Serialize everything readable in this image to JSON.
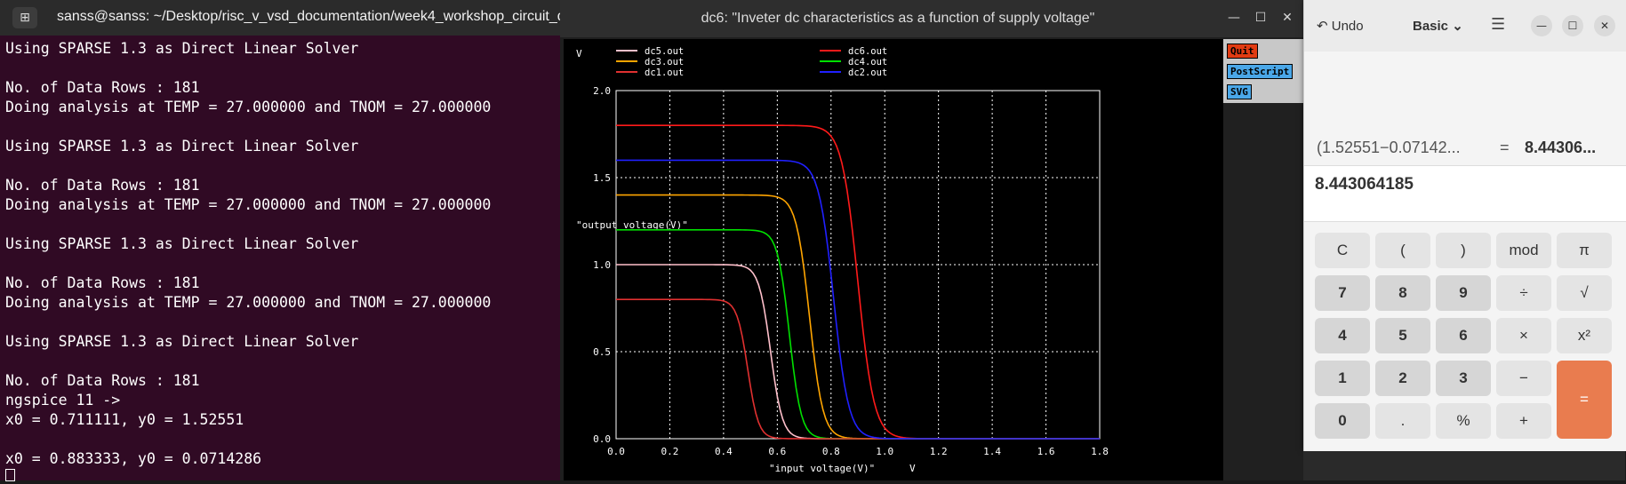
{
  "terminal": {
    "title": "sanss@sanss: ~/Desktop/risc_v_vsd_documentation/week4_workshop_circuit_d...",
    "lines": [
      "Using SPARSE 1.3 as Direct Linear Solver",
      "",
      "No. of Data Rows : 181",
      "Doing analysis at TEMP = 27.000000 and TNOM = 27.000000",
      "",
      "Using SPARSE 1.3 as Direct Linear Solver",
      "",
      "No. of Data Rows : 181",
      "Doing analysis at TEMP = 27.000000 and TNOM = 27.000000",
      "",
      "Using SPARSE 1.3 as Direct Linear Solver",
      "",
      "No. of Data Rows : 181",
      "Doing analysis at TEMP = 27.000000 and TNOM = 27.000000",
      "",
      "Using SPARSE 1.3 as Direct Linear Solver",
      "",
      "No. of Data Rows : 181",
      "ngspice 11 ->",
      "x0 = 0.711111, y0 = 1.52551",
      "",
      "x0 = 0.883333, y0 = 0.0714286"
    ]
  },
  "plot_window": {
    "title": "dc6: \"Inveter dc characteristics as a function of supply voltage\"",
    "buttons": {
      "quit": "Quit",
      "postscript": "PostScript",
      "svg": "SVG"
    }
  },
  "chart_data": {
    "type": "line",
    "xlabel": "\"input voltage(V)\"",
    "xunit": "V",
    "ylabel": "\"output voltage(V)\"",
    "yunit": "V",
    "xlim": [
      0,
      1.8
    ],
    "ylim": [
      0,
      2.0
    ],
    "xticks": [
      "0.0",
      "0.2",
      "0.4",
      "0.6",
      "0.8",
      "1.0",
      "1.2",
      "1.4",
      "1.6",
      "1.8"
    ],
    "yticks": [
      "0.0",
      "0.5",
      "1.0",
      "1.5",
      "2.0"
    ],
    "grid": true,
    "legend_position": "top",
    "series": [
      {
        "name": "dc5.out",
        "color": "#ffc0cb",
        "vdd": 1.0,
        "vm": 0.575,
        "w": 0.022
      },
      {
        "name": "dc6.out",
        "color": "#ff1a1a",
        "vdd": 1.8,
        "vm": 0.9,
        "w": 0.03
      },
      {
        "name": "dc3.out",
        "color": "#ffa500",
        "vdd": 1.4,
        "vm": 0.72,
        "w": 0.025
      },
      {
        "name": "dc4.out",
        "color": "#00e000",
        "vdd": 1.2,
        "vm": 0.645,
        "w": 0.022
      },
      {
        "name": "dc1.out",
        "color": "#e03030",
        "vdd": 0.8,
        "vm": 0.49,
        "w": 0.02
      },
      {
        "name": "dc2.out",
        "color": "#2020ff",
        "vdd": 1.6,
        "vm": 0.81,
        "w": 0.028
      }
    ]
  },
  "calculator": {
    "undo_label": "Undo",
    "mode_label": "Basic",
    "history_expr": "(1.52551−0.07142...",
    "history_eq": "=",
    "history_result": "8.44306...",
    "display": "8.443064185",
    "keys": [
      [
        "C",
        "(",
        ")",
        "mod",
        "π"
      ],
      [
        "7",
        "8",
        "9",
        "÷",
        "√"
      ],
      [
        "4",
        "5",
        "6",
        "×",
        "x²"
      ],
      [
        "1",
        "2",
        "3",
        "−",
        "="
      ],
      [
        "0",
        ".",
        "%",
        "+"
      ]
    ]
  }
}
